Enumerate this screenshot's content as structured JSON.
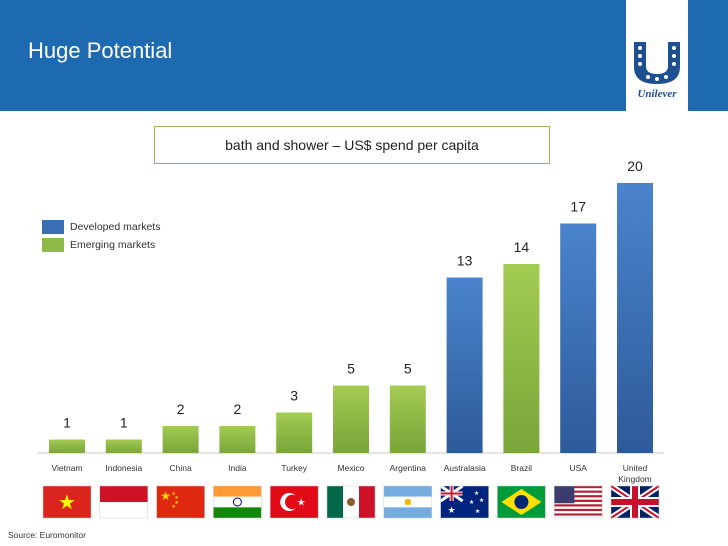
{
  "slide": {
    "title": "Huge Potential",
    "source": "Source: Euromonitor",
    "logo_text": "Unilever"
  },
  "colors": {
    "header": "#1e6ab0",
    "developed": "#3a6fb5",
    "emerging": "#8fba48"
  },
  "chart_data": {
    "type": "bar",
    "title": "bath and shower – US$ spend per capita",
    "categories": [
      "Vietnam",
      "Indonesia",
      "China",
      "India",
      "Turkey",
      "Mexico",
      "Argentina",
      "Australasia",
      "Brazil",
      "USA",
      "United Kingdom"
    ],
    "values": [
      1,
      1,
      2,
      2,
      3,
      5,
      5,
      13,
      14,
      17,
      20
    ],
    "market_type": [
      "emerging",
      "emerging",
      "emerging",
      "emerging",
      "emerging",
      "emerging",
      "emerging",
      "developed",
      "emerging",
      "developed",
      "developed"
    ],
    "legend": [
      {
        "label": "Developed markets",
        "type": "developed"
      },
      {
        "label": "Emerging markets",
        "type": "emerging"
      }
    ],
    "legend_position": "top-left",
    "ylim": [
      0,
      20
    ],
    "grid": false,
    "flag_icons": [
      "vietnam-flag-icon",
      "indonesia-flag-icon",
      "china-flag-icon",
      "india-flag-icon",
      "turkey-flag-icon",
      "mexico-flag-icon",
      "argentina-flag-icon",
      "australia-flag-icon",
      "brazil-flag-icon",
      "usa-flag-icon",
      "uk-flag-icon"
    ]
  }
}
